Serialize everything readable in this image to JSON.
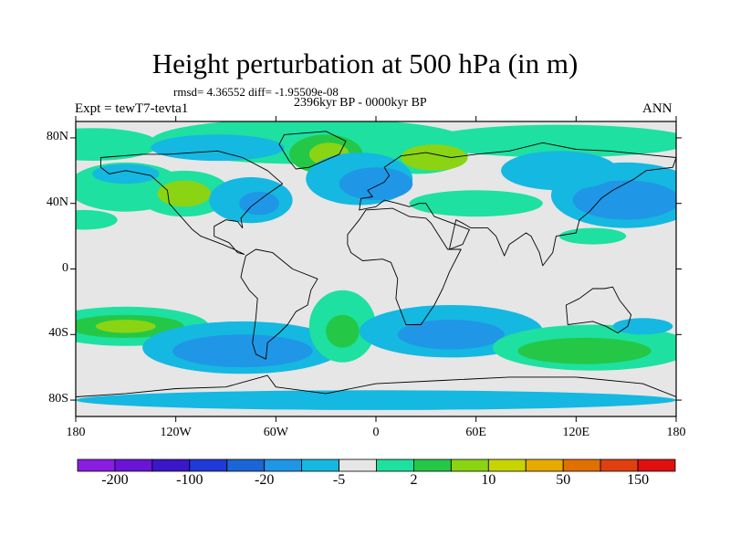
{
  "title": "Height perturbation at 500 hPa (in m)",
  "stats": "rmsd= 4.36552 diff= -1.95509e-08",
  "period": "2396kyr BP - 0000kyr BP",
  "expt": "Expt = tewT7-tevta1",
  "season": "ANN",
  "lat_labels": [
    {
      "lat": 80,
      "label": "80N"
    },
    {
      "lat": 40,
      "label": "40N"
    },
    {
      "lat": 0,
      "label": "0"
    },
    {
      "lat": -40,
      "label": "40S"
    },
    {
      "lat": -80,
      "label": "80S"
    }
  ],
  "lon_labels": [
    {
      "lon": -180,
      "label": "180"
    },
    {
      "lon": -120,
      "label": "120W"
    },
    {
      "lon": -60,
      "label": "60W"
    },
    {
      "lon": 0,
      "label": "0"
    },
    {
      "lon": 60,
      "label": "60E"
    },
    {
      "lon": 120,
      "label": "120E"
    },
    {
      "lon": 180,
      "label": "180"
    }
  ],
  "colorbar": {
    "colors": [
      "#8a1ee0",
      "#6a14d6",
      "#3a18c8",
      "#1e3ad8",
      "#1b66d6",
      "#2096e6",
      "#15b8e0",
      "#e6e6e6",
      "#1ee0a0",
      "#24c846",
      "#8ad414",
      "#c8d400",
      "#e6aa00",
      "#e07000",
      "#e04010",
      "#e01010"
    ],
    "labels": [
      {
        "index": 1,
        "label": "-200"
      },
      {
        "index": 3,
        "label": "-100"
      },
      {
        "index": 5,
        "label": "-20"
      },
      {
        "index": 7,
        "label": "-5"
      },
      {
        "index": 9,
        "label": "2"
      },
      {
        "index": 11,
        "label": "10"
      },
      {
        "index": 13,
        "label": "50"
      },
      {
        "index": 15,
        "label": "150"
      }
    ]
  },
  "field_colors": {
    "neutral": "#e6e6e6",
    "light_blue": "#15b8e0",
    "blue": "#2096e6",
    "deep_blue": "#1b66d6",
    "cyan_green": "#1ee0a0",
    "green": "#24c846",
    "yellow_green": "#8ad414",
    "yellow": "#c8d400"
  }
}
